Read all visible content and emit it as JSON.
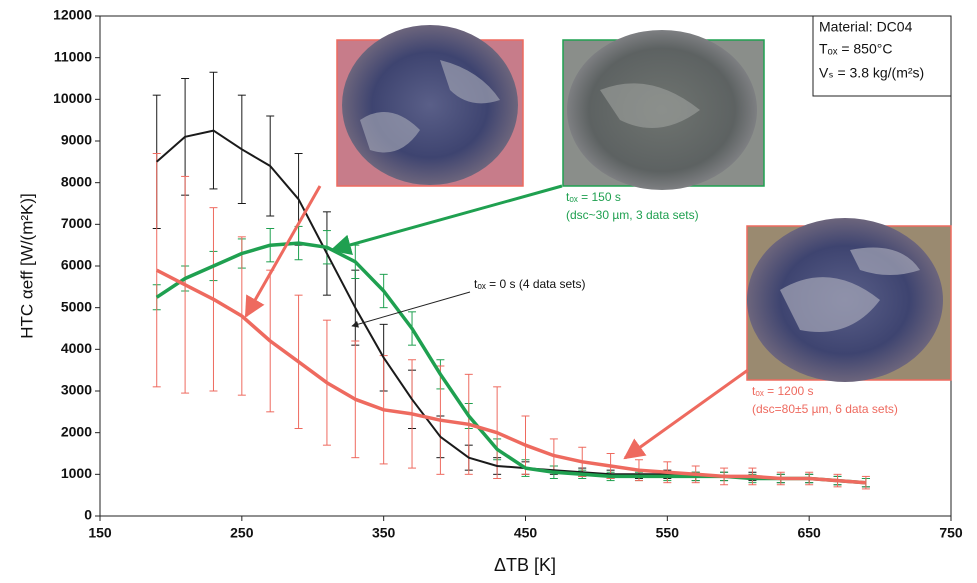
{
  "chart_data": {
    "type": "line",
    "xlabel": "ΔTB [K]",
    "ylabel": "HTC  αeff [W/(m²K)]",
    "x": [
      190,
      210,
      230,
      250,
      270,
      290,
      310,
      330,
      350,
      370,
      390,
      410,
      430,
      450,
      470,
      490,
      510,
      530,
      550,
      570,
      590,
      610,
      630,
      650,
      670,
      690
    ],
    "series": [
      {
        "name": "tₒₓ = 0 s (4 data sets)",
        "color": "#1a1a1a",
        "values": [
          8500,
          9100,
          9250,
          8800,
          8400,
          7600,
          6300,
          5000,
          3800,
          2800,
          1900,
          1400,
          1200,
          1150,
          1100,
          1050,
          1000,
          1000,
          1000,
          950,
          950,
          950,
          900,
          900,
          850,
          800
        ],
        "errors": [
          1600,
          1400,
          1400,
          1300,
          1200,
          1100,
          1000,
          900,
          800,
          700,
          500,
          300,
          200,
          150,
          100,
          100,
          100,
          100,
          100,
          100,
          100,
          100,
          100,
          100,
          100,
          100
        ]
      },
      {
        "name": "tₒₓ = 150 s",
        "color": "#1fa050",
        "values": [
          5250,
          5700,
          6000,
          6300,
          6500,
          6550,
          6450,
          6100,
          5400,
          4500,
          3400,
          2400,
          1600,
          1150,
          1050,
          1000,
          950,
          950,
          950,
          950,
          950,
          900,
          900,
          900,
          850,
          800
        ],
        "errors": [
          300,
          300,
          350,
          350,
          400,
          400,
          400,
          400,
          400,
          400,
          350,
          300,
          250,
          200,
          150,
          100,
          100,
          100,
          100,
          100,
          100,
          100,
          100,
          100,
          100,
          100
        ]
      },
      {
        "name": "tₒₓ = 1200 s",
        "color": "#ee6a5f",
        "values": [
          5900,
          5550,
          5200,
          4800,
          4200,
          3700,
          3200,
          2800,
          2550,
          2450,
          2300,
          2200,
          2000,
          1700,
          1450,
          1300,
          1200,
          1100,
          1050,
          1000,
          950,
          950,
          900,
          900,
          850,
          800
        ],
        "errors": [
          2800,
          2600,
          2200,
          1900,
          1700,
          1600,
          1500,
          1400,
          1300,
          1300,
          1300,
          1200,
          1100,
          700,
          400,
          350,
          300,
          250,
          250,
          200,
          200,
          200,
          150,
          150,
          150,
          150
        ]
      }
    ],
    "annotations": [
      "(dsc~30 µm, 3 data sets)",
      "(dsc=80±5 µm, 6 data sets)"
    ],
    "info": [
      "Material: DC04",
      "Tₒₓ = 850°C",
      "Vₛ = 3.8 kg/(m²s)"
    ],
    "xlim": [
      150,
      750
    ],
    "xticks": [
      150,
      250,
      350,
      450,
      550,
      650,
      750
    ],
    "ylim": [
      0,
      12000
    ],
    "yticks": [
      0,
      1000,
      2000,
      3000,
      4000,
      5000,
      6000,
      7000,
      8000,
      9000,
      10000,
      11000,
      12000
    ]
  }
}
